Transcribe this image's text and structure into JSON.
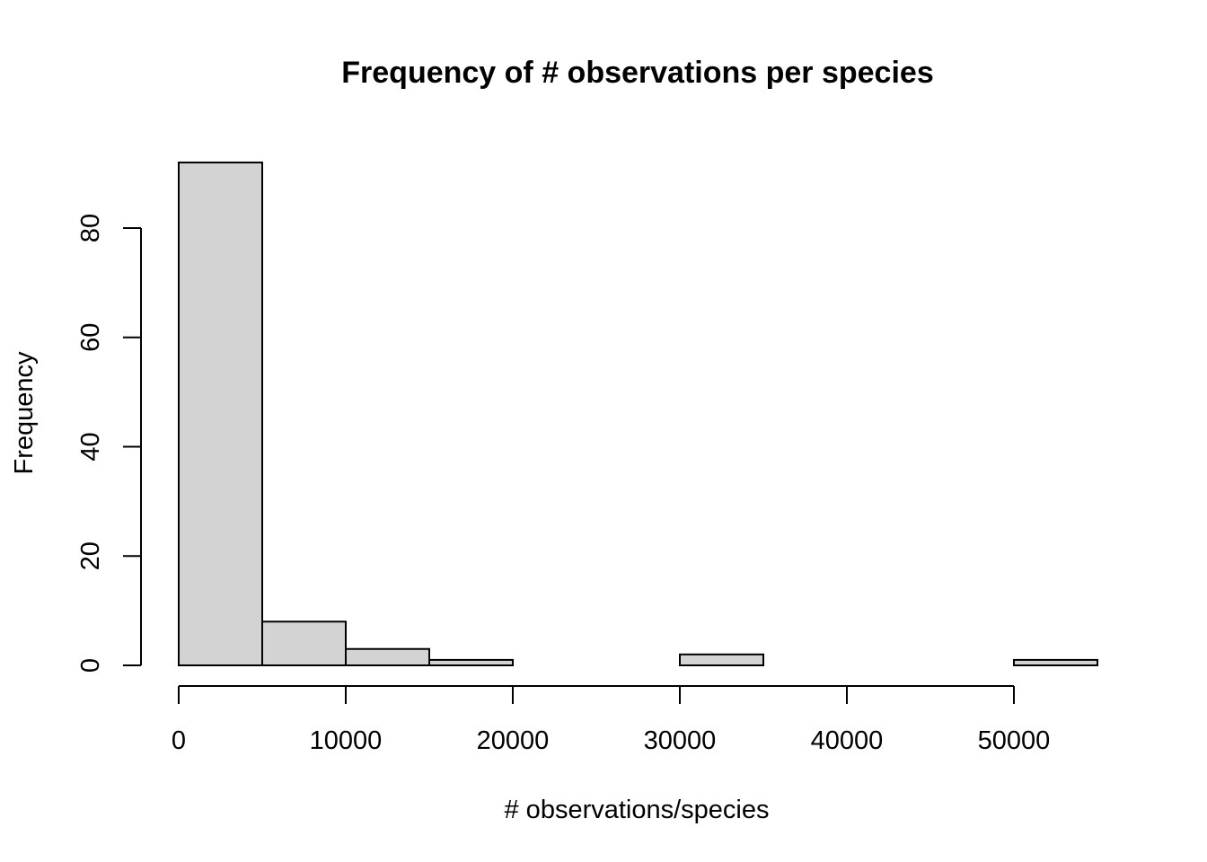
{
  "chart_data": {
    "type": "bar",
    "histogram": true,
    "title": "Frequency of # observations per species",
    "xlabel": "# observations/species",
    "ylabel": "Frequency",
    "bins": [
      {
        "from": 0,
        "to": 5000,
        "count": 92
      },
      {
        "from": 5000,
        "to": 10000,
        "count": 8
      },
      {
        "from": 10000,
        "to": 15000,
        "count": 3
      },
      {
        "from": 15000,
        "to": 20000,
        "count": 1
      },
      {
        "from": 20000,
        "to": 25000,
        "count": 0
      },
      {
        "from": 25000,
        "to": 30000,
        "count": 0
      },
      {
        "from": 30000,
        "to": 35000,
        "count": 2
      },
      {
        "from": 35000,
        "to": 40000,
        "count": 0
      },
      {
        "from": 40000,
        "to": 45000,
        "count": 0
      },
      {
        "from": 45000,
        "to": 50000,
        "count": 0
      },
      {
        "from": 50000,
        "to": 55000,
        "count": 1
      }
    ],
    "x_ticks": [
      0,
      10000,
      20000,
      30000,
      40000,
      50000
    ],
    "y_ticks": [
      0,
      20,
      40,
      60,
      80
    ],
    "xlim": [
      0,
      55000
    ],
    "ylim": [
      0,
      92
    ],
    "grid": false,
    "bar_fill": "#d3d3d3",
    "bar_stroke": "#000000"
  }
}
